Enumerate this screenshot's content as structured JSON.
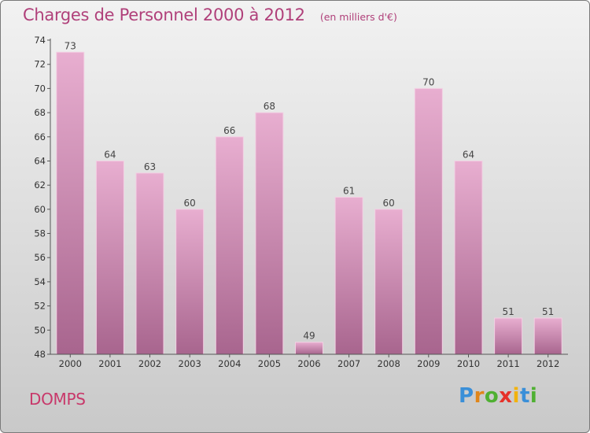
{
  "header": {
    "title": "Charges de Personnel 2000 à 2012",
    "subtitle": "(en milliers d'€)"
  },
  "footer": {
    "commune": "DOMPS",
    "logo_text": "Proxiti"
  },
  "colors": {
    "bar_top": "#e8aed0",
    "bar_bottom": "#a8658e",
    "title": "#b0407a",
    "commune": "#c8386a"
  },
  "chart_data": {
    "type": "bar",
    "title": "Charges de Personnel 2000 à 2012",
    "subtitle": "(en milliers d'€)",
    "categories": [
      "2000",
      "2001",
      "2002",
      "2003",
      "2004",
      "2005",
      "2006",
      "2007",
      "2008",
      "2009",
      "2010",
      "2011",
      "2012"
    ],
    "values": [
      73,
      64,
      63,
      60,
      66,
      68,
      49,
      61,
      60,
      70,
      64,
      51,
      51
    ],
    "ylim": [
      48,
      74
    ],
    "yticks": [
      48,
      50,
      52,
      54,
      56,
      58,
      60,
      62,
      64,
      66,
      68,
      70,
      72,
      74
    ],
    "grid": false,
    "legend": "none",
    "data_labels": true
  }
}
